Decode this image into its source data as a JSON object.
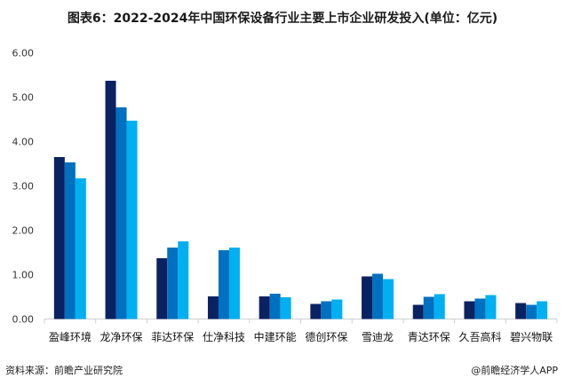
{
  "title": "图表6：2022-2024年中国环保设备行业主要上市企业研发投入(单位：亿元)",
  "source": "资料来源：前瞻产业研究院",
  "brand": "@前瞻经济学人APP",
  "chart_data": {
    "type": "bar",
    "title": "图表6：2022-2024年中国环保设备行业主要上市企业研发投入(单位：亿元)",
    "xlabel": "",
    "ylabel": "",
    "ylim": [
      0,
      6
    ],
    "yticks": [
      "0.00",
      "1.00",
      "2.00",
      "3.00",
      "4.00",
      "5.00",
      "6.00"
    ],
    "grid": false,
    "legend": "none",
    "categories": [
      "盈峰环境",
      "龙净环保",
      "菲达环保",
      "仕净科技",
      "中建环能",
      "德创环保",
      "雪迪龙",
      "青达环保",
      "久吾高科",
      "碧兴物联"
    ],
    "series": [
      {
        "color": "#0b2262",
        "values": [
          3.65,
          5.37,
          1.37,
          0.51,
          0.51,
          0.34,
          0.96,
          0.32,
          0.4,
          0.36
        ]
      },
      {
        "color": "#0070c0",
        "values": [
          3.53,
          4.77,
          1.61,
          1.55,
          0.57,
          0.4,
          1.02,
          0.5,
          0.46,
          0.32
        ]
      },
      {
        "color": "#00b0f0",
        "values": [
          3.17,
          4.47,
          1.75,
          1.61,
          0.49,
          0.44,
          0.9,
          0.56,
          0.54,
          0.4
        ]
      }
    ]
  }
}
